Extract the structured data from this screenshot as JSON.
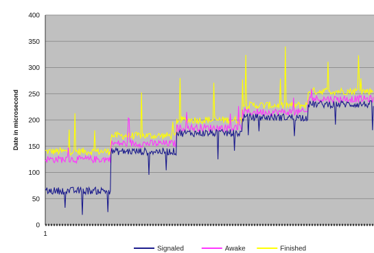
{
  "chart_data": {
    "type": "line",
    "title": "",
    "ylabel": "Date in microsecond",
    "xlabel": "",
    "ylim": [
      0,
      400
    ],
    "yticks": [
      0,
      50,
      100,
      150,
      200,
      250,
      300,
      350,
      400
    ],
    "xticks": [
      "1"
    ],
    "grid": true,
    "plot_background": "#c0c0c0",
    "legend_position": "bottom",
    "segments": 5,
    "series": [
      {
        "name": "Signaled",
        "color": "#1a1a8c",
        "segment_levels": [
          65,
          140,
          175,
          205,
          230
        ]
      },
      {
        "name": "Awake",
        "color": "#ff33ff",
        "segment_levels": [
          125,
          155,
          185,
          215,
          240
        ]
      },
      {
        "name": "Finished",
        "color": "#ffff00",
        "segment_levels": [
          140,
          170,
          200,
          228,
          255
        ]
      }
    ]
  }
}
